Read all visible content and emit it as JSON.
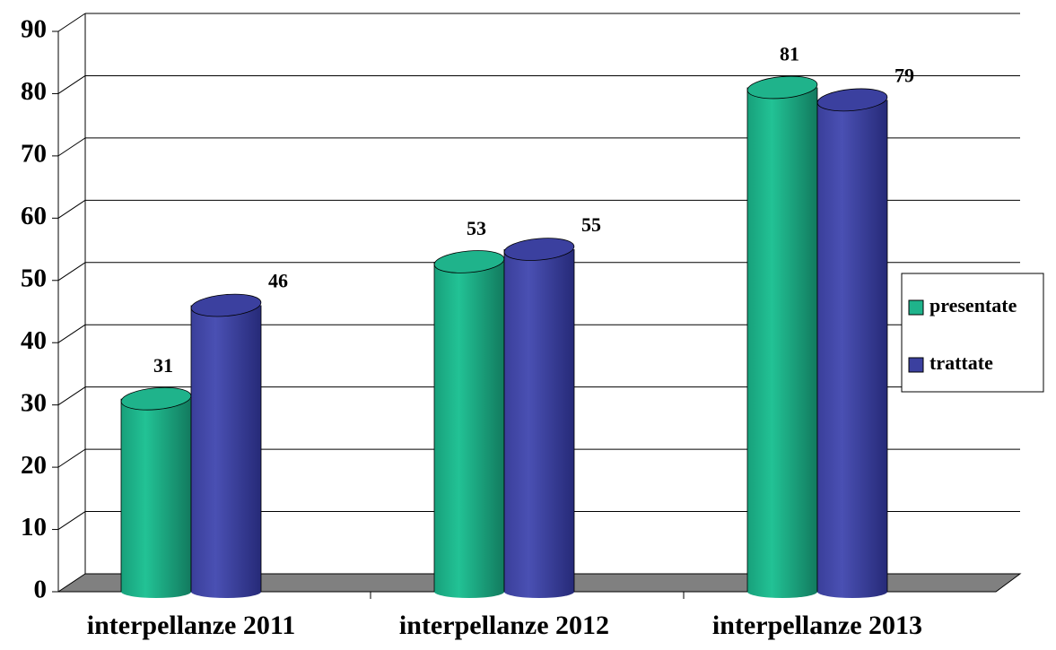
{
  "chart_data": {
    "type": "bar",
    "categories": [
      "interpellanze 2011",
      "interpellanze 2012",
      "interpellanze 2013"
    ],
    "series": [
      {
        "name": "presentate",
        "color": "#1fb38b",
        "values": [
          31,
          53,
          81
        ]
      },
      {
        "name": "trattate",
        "color": "#3b409f",
        "values": [
          46,
          55,
          79
        ]
      }
    ],
    "ylim": [
      0,
      90
    ],
    "yticks": [
      0,
      10,
      20,
      30,
      40,
      50,
      60,
      70,
      80,
      90
    ],
    "grid": true,
    "legend": "right"
  }
}
